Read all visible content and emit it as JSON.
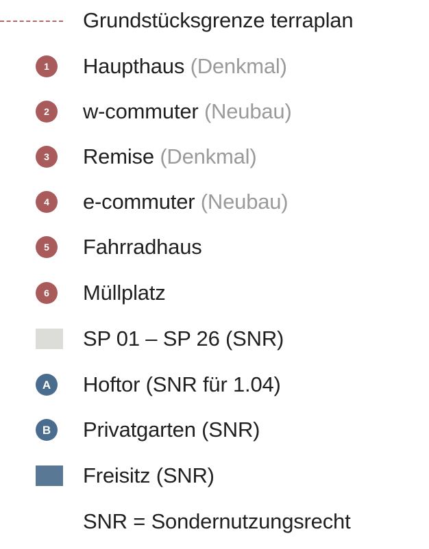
{
  "colors": {
    "building_marker": "#a95a5a",
    "snr_marker": "#4a6d8f",
    "boundary_line": "#b06a6a",
    "sp_swatch": "#dcddd9",
    "freisitz_swatch": "#587896",
    "note_text": "#9a9a9a"
  },
  "legend": {
    "boundary": {
      "label": "Grundstücksgrenze terraplan"
    },
    "buildings": [
      {
        "number": "1",
        "name": "Haupthaus",
        "note": "(Denkmal)"
      },
      {
        "number": "2",
        "name": "w-commuter",
        "note": "(Neubau)"
      },
      {
        "number": "3",
        "name": "Remise",
        "note": "(Denkmal)"
      },
      {
        "number": "4",
        "name": "e-commuter",
        "note": "(Neubau)"
      },
      {
        "number": "5",
        "name": "Fahrradhaus",
        "note": ""
      },
      {
        "number": "6",
        "name": "Müllplatz",
        "note": ""
      }
    ],
    "parking": {
      "label": "SP 01 – SP 26 (SNR)"
    },
    "gate": {
      "letter": "A",
      "label": "Hoftor (SNR für 1.04)"
    },
    "garden": {
      "letter": "B",
      "label": "Privatgarten (SNR)"
    },
    "seating": {
      "label": "Freisitz (SNR)"
    },
    "footnote": "SNR = Sondernutzungsrecht"
  }
}
